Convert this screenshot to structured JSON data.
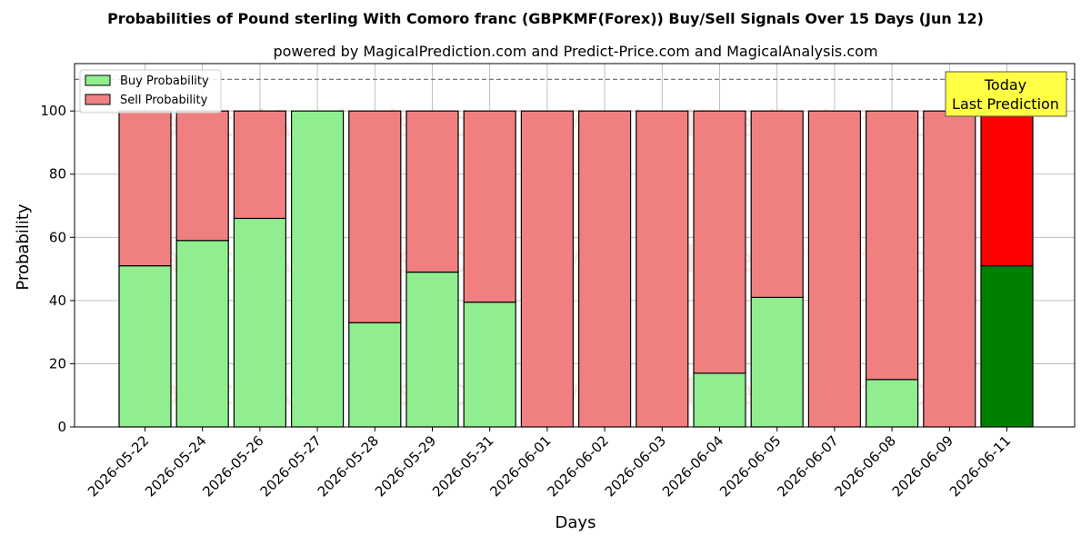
{
  "chart_data": {
    "type": "bar",
    "stacked": true,
    "title": "Probabilities of Pound sterling With Comoro franc (GBPKMF(Forex)) Buy/Sell Signals Over 15 Days (Jun 12)",
    "subtitle": "powered by MagicalPrediction.com and Predict-Price.com and MagicalAnalysis.com",
    "xlabel": "Days",
    "ylabel": "Probability",
    "ylim": [
      0,
      115
    ],
    "yticks": [
      0,
      20,
      40,
      60,
      80,
      100
    ],
    "grid": true,
    "legend_position": "top-left",
    "reference_line": 110,
    "categories": [
      "2026-05-22",
      "2026-05-24",
      "2026-05-26",
      "2026-05-27",
      "2026-05-28",
      "2026-05-29",
      "2026-05-31",
      "2026-06-01",
      "2026-06-02",
      "2026-06-03",
      "2026-06-04",
      "2026-06-05",
      "2026-06-07",
      "2026-06-08",
      "2026-06-09",
      "2026-06-11"
    ],
    "series": [
      {
        "name": "Buy Probability",
        "color": "#90ee90",
        "values": [
          51,
          59,
          66,
          100,
          33,
          49,
          39.5,
          0,
          0,
          0,
          17,
          41,
          0,
          15,
          0,
          51
        ]
      },
      {
        "name": "Sell Probability",
        "color": "#f08080",
        "values": [
          49,
          41,
          34,
          0,
          67,
          51,
          60.5,
          100,
          100,
          100,
          83,
          59,
          100,
          85,
          100,
          49
        ]
      }
    ],
    "highlight": {
      "index": 15,
      "buy_color": "#008000",
      "sell_color": "#ff0000"
    },
    "annotation": {
      "lines": [
        "Today",
        "Last Prediction"
      ],
      "background": "#ffff44"
    },
    "watermarks": [
      "MagicalAnalysis.com",
      "MagicalPrediction.com"
    ]
  }
}
